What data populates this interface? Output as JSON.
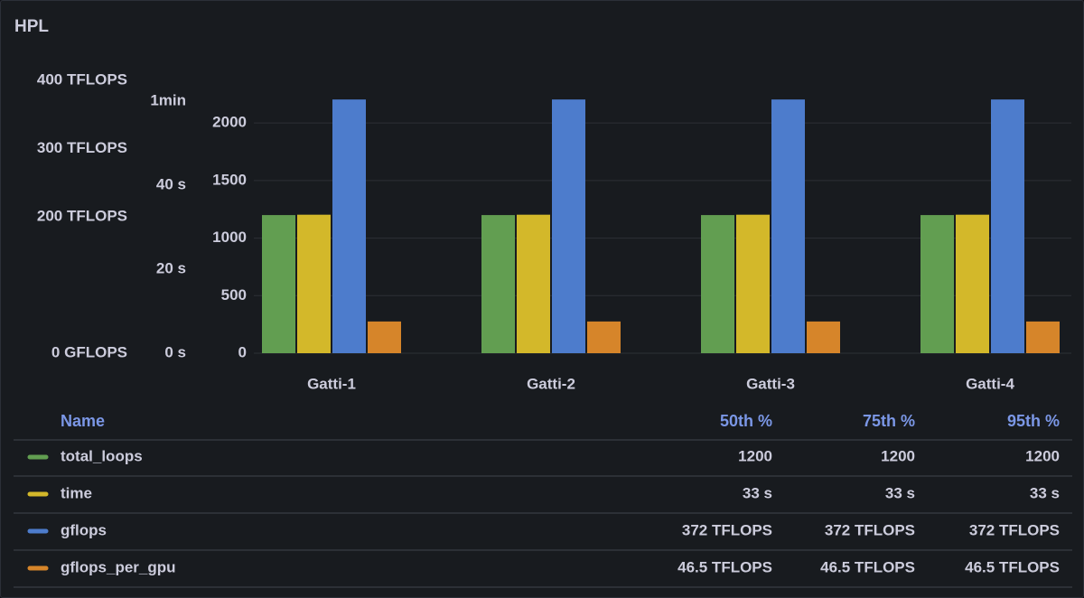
{
  "chart_data": {
    "type": "bar",
    "title": "HPL",
    "categories": [
      "Gatti-1",
      "Gatti-2",
      "Gatti-3",
      "Gatti-4"
    ],
    "series": [
      {
        "name": "total_loops",
        "color": "#629e51",
        "values": [
          1200,
          1200,
          1200,
          1200
        ]
      },
      {
        "name": "time",
        "color": "#d3b82a",
        "values": [
          33,
          33,
          33,
          33
        ],
        "axis": "y2"
      },
      {
        "name": "gflops",
        "color": "#4d7ccc",
        "values": [
          372000,
          372000,
          372000,
          372000
        ],
        "axis": "y3"
      },
      {
        "name": "gflops_per_gpu",
        "color": "#d6852a",
        "values": [
          46500,
          46500,
          46500,
          46500
        ],
        "axis": "y3"
      }
    ],
    "ylim": [
      0,
      2370
    ],
    "yticks": [
      0,
      500,
      1000,
      1500,
      2000
    ],
    "y2lim": [
      0,
      65
    ],
    "y2ticks": [
      {
        "value": 0,
        "label": "0 s"
      },
      {
        "value": 20,
        "label": "20 s"
      },
      {
        "value": 40,
        "label": "40 s"
      },
      {
        "value": 60,
        "label": "1min"
      }
    ],
    "y3lim": [
      0,
      400000
    ],
    "y3ticks": [
      {
        "value": 0,
        "label": "0 GFLOPS"
      },
      {
        "value": 200000,
        "label": "200 TFLOPS"
      },
      {
        "value": 300000,
        "label": "300 TFLOPS"
      },
      {
        "value": 400000,
        "label": "400 TFLOPS"
      }
    ],
    "grid": true,
    "legend": {
      "columns": [
        "Name",
        "50th %",
        "75th %",
        "95th %"
      ],
      "rows": [
        [
          "1200",
          "1200",
          "1200"
        ],
        [
          "33 s",
          "33 s",
          "33 s"
        ],
        [
          "372 TFLOPS",
          "372 TFLOPS",
          "372 TFLOPS"
        ],
        [
          "46.5 TFLOPS",
          "46.5 TFLOPS",
          "46.5 TFLOPS"
        ]
      ]
    }
  }
}
